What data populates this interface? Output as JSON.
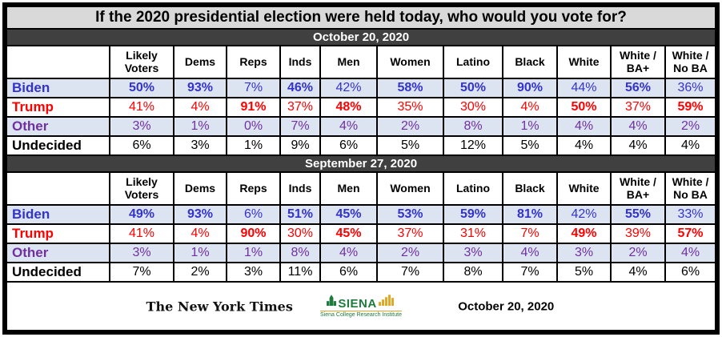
{
  "chart_data": {
    "type": "table",
    "title": "If the 2020 presidential election were held today, who would you vote for?",
    "columns": [
      "Likely Voters",
      "Dems",
      "Reps",
      "Inds",
      "Men",
      "Women",
      "Latino",
      "Black",
      "White",
      "White / BA+",
      "White / No BA"
    ],
    "sections": [
      {
        "date": "October 20, 2020",
        "rows": [
          {
            "label": "Biden",
            "color": "#3333cc",
            "shaded": true,
            "values": [
              "50%",
              "93%",
              "7%",
              "46%",
              "42%",
              "58%",
              "50%",
              "90%",
              "44%",
              "56%",
              "36%"
            ],
            "bold": [
              true,
              true,
              false,
              true,
              false,
              true,
              true,
              true,
              false,
              true,
              false
            ]
          },
          {
            "label": "Trump",
            "color": "#ff0000",
            "shaded": false,
            "values": [
              "41%",
              "4%",
              "91%",
              "37%",
              "48%",
              "35%",
              "30%",
              "4%",
              "50%",
              "37%",
              "59%"
            ],
            "bold": [
              false,
              false,
              true,
              false,
              true,
              false,
              false,
              false,
              true,
              false,
              true
            ]
          },
          {
            "label": "Other",
            "color": "#7030a0",
            "shaded": true,
            "values": [
              "3%",
              "1%",
              "0%",
              "7%",
              "4%",
              "2%",
              "8%",
              "1%",
              "4%",
              "4%",
              "2%"
            ],
            "bold": [
              false,
              false,
              false,
              false,
              false,
              false,
              false,
              false,
              false,
              false,
              false
            ]
          },
          {
            "label": "Undecided",
            "color": "#000000",
            "shaded": false,
            "values": [
              "6%",
              "3%",
              "1%",
              "9%",
              "6%",
              "5%",
              "12%",
              "5%",
              "4%",
              "4%",
              "4%"
            ],
            "bold": [
              false,
              false,
              false,
              false,
              false,
              false,
              false,
              false,
              false,
              false,
              false
            ]
          }
        ]
      },
      {
        "date": "September 27, 2020",
        "rows": [
          {
            "label": "Biden",
            "color": "#3333cc",
            "shaded": true,
            "values": [
              "49%",
              "93%",
              "6%",
              "51%",
              "45%",
              "53%",
              "59%",
              "81%",
              "42%",
              "55%",
              "33%"
            ],
            "bold": [
              true,
              true,
              false,
              true,
              true,
              true,
              true,
              true,
              false,
              true,
              false
            ]
          },
          {
            "label": "Trump",
            "color": "#ff0000",
            "shaded": false,
            "values": [
              "41%",
              "4%",
              "90%",
              "30%",
              "45%",
              "37%",
              "31%",
              "7%",
              "49%",
              "39%",
              "57%"
            ],
            "bold": [
              false,
              false,
              true,
              false,
              true,
              false,
              false,
              false,
              true,
              false,
              true
            ]
          },
          {
            "label": "Other",
            "color": "#7030a0",
            "shaded": true,
            "values": [
              "3%",
              "1%",
              "1%",
              "8%",
              "4%",
              "2%",
              "3%",
              "4%",
              "3%",
              "2%",
              "4%"
            ],
            "bold": [
              false,
              false,
              false,
              false,
              false,
              false,
              false,
              false,
              false,
              false,
              false
            ]
          },
          {
            "label": "Undecided",
            "color": "#000000",
            "shaded": false,
            "values": [
              "7%",
              "2%",
              "3%",
              "11%",
              "6%",
              "7%",
              "8%",
              "7%",
              "5%",
              "4%",
              "6%"
            ],
            "bold": [
              false,
              false,
              false,
              false,
              false,
              false,
              false,
              false,
              false,
              false,
              false
            ]
          }
        ]
      }
    ],
    "layout": {
      "shaded_row_bg": "#dce4f1",
      "title_bg": "#d9d9d9",
      "band_bg": "#404040",
      "band_text": "#ffffff",
      "siena_green": "#1e7b3d",
      "siena_gold": "#dfa927",
      "grid_on": true
    }
  },
  "footer": {
    "nyt_logo_text": "The New York Times",
    "siena_logo_text": "SIENA",
    "siena_sub_text": "Siena College Research Institute",
    "date": "October 20, 2020"
  }
}
